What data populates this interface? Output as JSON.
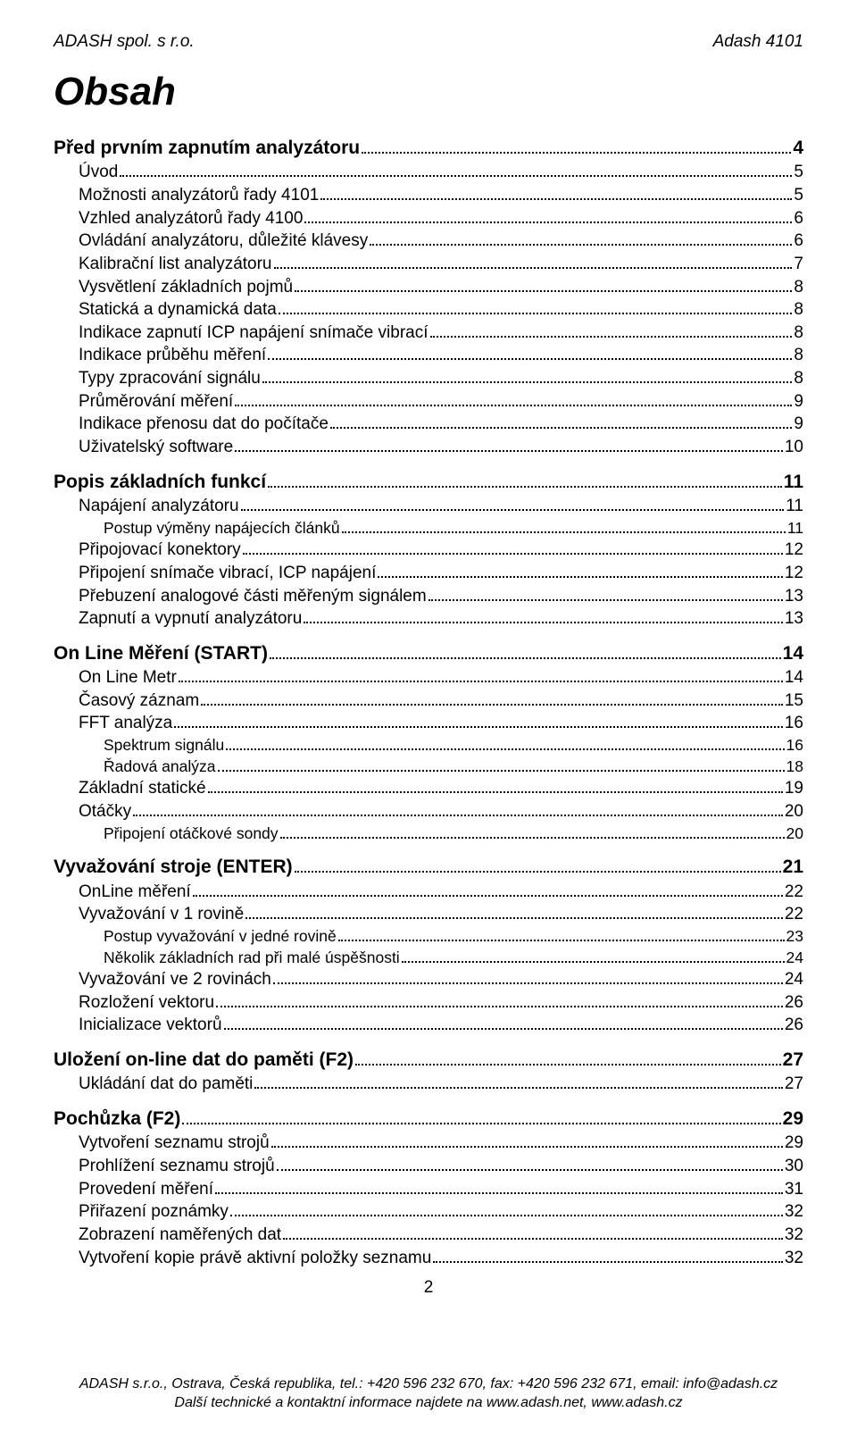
{
  "header": {
    "left": "ADASH spol. s r.o.",
    "right": "Adash 4101"
  },
  "title": "Obsah",
  "page_number": "2",
  "footer_line1": "ADASH s.r.o., Ostrava, Česká republika, tel.: +420 596 232 670, fax: +420 596 232 671, email: info@adash.cz",
  "footer_line2": "Další technické a kontaktní informace najdete na www.adash.net, www.adash.cz",
  "toc": [
    {
      "level": 0,
      "label": "Před prvním zapnutím analyzátoru",
      "page": "4"
    },
    {
      "level": 1,
      "label": "Úvod",
      "page": "5"
    },
    {
      "level": 1,
      "label": "Možnosti analyzátorů řady 4101",
      "page": "5"
    },
    {
      "level": 1,
      "label": "Vzhled analyzátorů řady 4100",
      "page": "6"
    },
    {
      "level": 1,
      "label": "Ovládání analyzátoru, důležité klávesy",
      "page": "6"
    },
    {
      "level": 1,
      "label": "Kalibrační list analyzátoru",
      "page": "7"
    },
    {
      "level": 1,
      "label": "Vysvětlení základních pojmů",
      "page": "8"
    },
    {
      "level": 1,
      "label": "Statická a dynamická data",
      "page": "8"
    },
    {
      "level": 1,
      "label": "Indikace zapnutí ICP napájení snímače vibrací",
      "page": "8"
    },
    {
      "level": 1,
      "label": "Indikace průběhu měření",
      "page": "8"
    },
    {
      "level": 1,
      "label": "Typy zpracování signálu",
      "page": "8"
    },
    {
      "level": 1,
      "label": "Průměrování měření",
      "page": "9"
    },
    {
      "level": 1,
      "label": "Indikace přenosu dat do počítače",
      "page": "9"
    },
    {
      "level": 1,
      "label": "Uživatelský software",
      "page": "10"
    },
    {
      "level": 0,
      "label": "Popis základních funkcí",
      "page": "11"
    },
    {
      "level": 1,
      "label": "Napájení analyzátoru",
      "page": "11"
    },
    {
      "level": 2,
      "label": "Postup výměny napájecích článků",
      "page": "11"
    },
    {
      "level": 1,
      "label": "Připojovací konektory",
      "page": "12"
    },
    {
      "level": 1,
      "label": "Připojení snímače vibrací, ICP napájení",
      "page": "12"
    },
    {
      "level": 1,
      "label": "Přebuzení analogové části měřeným signálem",
      "page": "13"
    },
    {
      "level": 1,
      "label": "Zapnutí a vypnutí analyzátoru",
      "page": "13"
    },
    {
      "level": 0,
      "label": "On Line Měření (START)",
      "page": "14"
    },
    {
      "level": 1,
      "label": "On Line Metr",
      "page": "14"
    },
    {
      "level": 1,
      "label": "Časový záznam",
      "page": "15"
    },
    {
      "level": 1,
      "label": "FFT analýza",
      "page": "16"
    },
    {
      "level": 2,
      "label": "Spektrum signálu",
      "page": "16"
    },
    {
      "level": 2,
      "label": "Řadová analýza",
      "page": "18"
    },
    {
      "level": 1,
      "label": "Základní statické",
      "page": "19"
    },
    {
      "level": 1,
      "label": "Otáčky",
      "page": "20"
    },
    {
      "level": 2,
      "label": "Připojení otáčkové sondy",
      "page": "20"
    },
    {
      "level": 0,
      "label": "Vyvažování stroje (ENTER)",
      "page": "21"
    },
    {
      "level": 1,
      "label": "OnLine měření",
      "page": "22"
    },
    {
      "level": 1,
      "label": "Vyvažování v 1 rovině",
      "page": "22"
    },
    {
      "level": 2,
      "label": "Postup vyvažování v jedné rovině",
      "page": "23"
    },
    {
      "level": 2,
      "label": "Několik základních rad při malé úspěšnosti",
      "page": "24"
    },
    {
      "level": 1,
      "label": "Vyvažování ve 2 rovinách",
      "page": "24"
    },
    {
      "level": 1,
      "label": "Rozložení vektoru",
      "page": "26"
    },
    {
      "level": 1,
      "label": "Inicializace vektorů",
      "page": "26"
    },
    {
      "level": 0,
      "label": "Uložení on-line dat do paměti (F2)",
      "page": "27"
    },
    {
      "level": 1,
      "label": "Ukládání dat do paměti",
      "page": "27"
    },
    {
      "level": 0,
      "label": "Pochůzka (F2)",
      "page": "29"
    },
    {
      "level": 1,
      "label": "Vytvoření seznamu strojů",
      "page": "29"
    },
    {
      "level": 1,
      "label": "Prohlížení seznamu strojů",
      "page": "30"
    },
    {
      "level": 1,
      "label": "Provedení měření",
      "page": "31"
    },
    {
      "level": 1,
      "label": "Přiřazení poznámky",
      "page": "32"
    },
    {
      "level": 1,
      "label": "Zobrazení naměřených dat",
      "page": "32"
    },
    {
      "level": 1,
      "label": "Vytvoření kopie právě aktivní položky seznamu",
      "page": "32"
    }
  ]
}
